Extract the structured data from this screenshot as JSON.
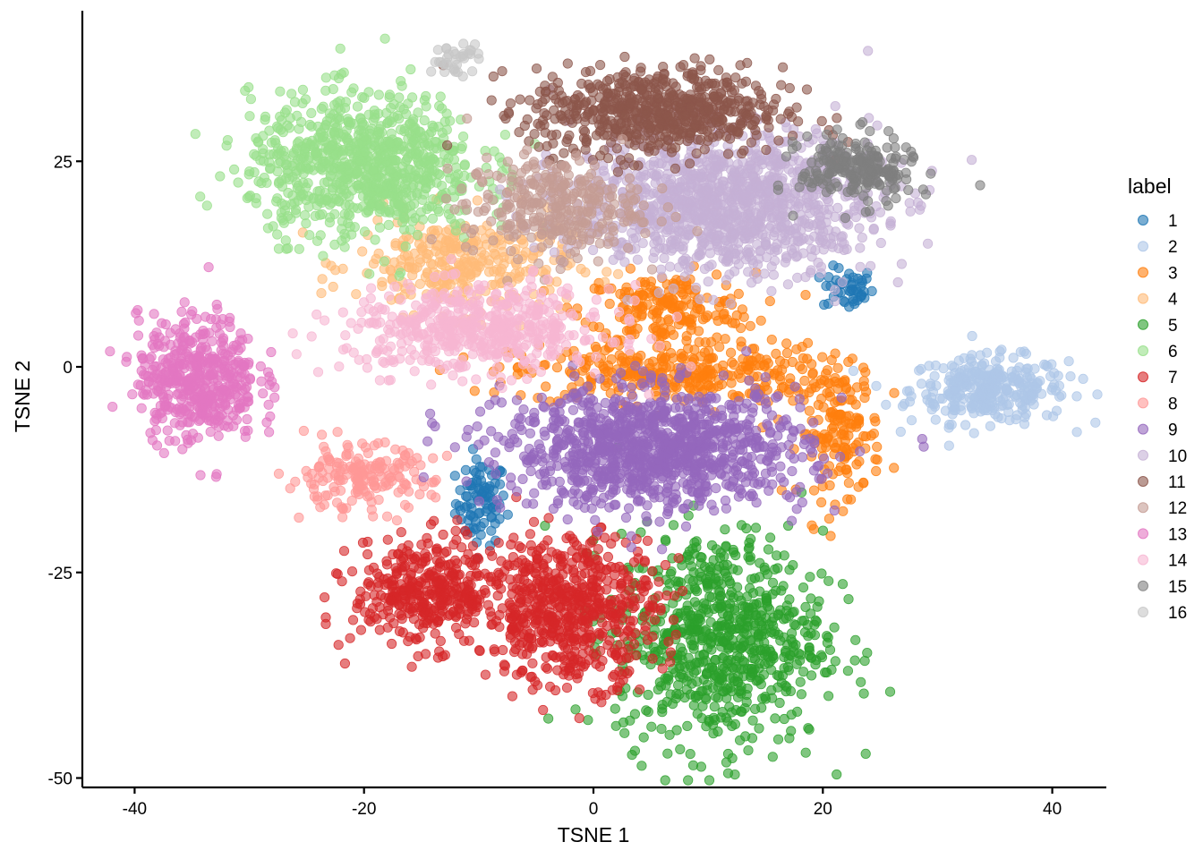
{
  "chart_data": {
    "type": "scatter",
    "xlabel": "TSNE 1",
    "ylabel": "TSNE 2",
    "xlim": [
      -45,
      45
    ],
    "ylim": [
      -51,
      43
    ],
    "x_ticks": [
      -40,
      -20,
      0,
      20,
      40
    ],
    "y_ticks": [
      -50,
      -25,
      0,
      25
    ],
    "grid": false,
    "legend": {
      "title": "label",
      "position": "right"
    },
    "point_opacity": 0.6,
    "series": [
      {
        "name": "1",
        "color": "#1F77B4",
        "clusters": [
          {
            "x": -9.8,
            "y": -16.5,
            "n": 90,
            "sx": 1.1,
            "sy": 2.6
          },
          {
            "x": 22.2,
            "y": 9.5,
            "n": 45,
            "sx": 1.1,
            "sy": 1.3
          }
        ]
      },
      {
        "name": "2",
        "color": "#AEC7E8",
        "clusters": [
          {
            "x": 34.5,
            "y": -2.8,
            "n": 320,
            "sx": 3.4,
            "sy": 2.0
          }
        ]
      },
      {
        "name": "3",
        "color": "#FF7F0E",
        "clusters": [
          {
            "x": 6.5,
            "y": 7.0,
            "n": 200,
            "sx": 3.8,
            "sy": 2.2
          },
          {
            "x": 7.0,
            "y": -0.8,
            "n": 320,
            "sx": 7.0,
            "sy": 1.8
          },
          {
            "x": 21.5,
            "y": -8.0,
            "n": 160,
            "sx": 1.8,
            "sy": 4.0
          }
        ]
      },
      {
        "name": "4",
        "color": "#FFBB78",
        "clusters": [
          {
            "x": -11.5,
            "y": 12.5,
            "n": 320,
            "sx": 4.6,
            "sy": 3.0
          }
        ]
      },
      {
        "name": "5",
        "color": "#2CA02C",
        "clusters": [
          {
            "x": 11.0,
            "y": -33.0,
            "n": 750,
            "sx": 4.5,
            "sy": 6.5
          }
        ]
      },
      {
        "name": "6",
        "color": "#98DF8A",
        "clusters": [
          {
            "x": -20.0,
            "y": 24.5,
            "n": 850,
            "sx": 5.0,
            "sy": 4.3
          }
        ]
      },
      {
        "name": "7",
        "color": "#D62728",
        "clusters": [
          {
            "x": -14.5,
            "y": -27.5,
            "n": 380,
            "sx": 3.2,
            "sy": 3.2
          },
          {
            "x": -2.0,
            "y": -29.5,
            "n": 620,
            "sx": 3.8,
            "sy": 4.5
          }
        ]
      },
      {
        "name": "8",
        "color": "#FF9896",
        "clusters": [
          {
            "x": -20.5,
            "y": -13.5,
            "n": 180,
            "sx": 3.2,
            "sy": 2.0
          }
        ]
      },
      {
        "name": "9",
        "color": "#9467BD",
        "clusters": [
          {
            "x": 5.5,
            "y": -10.0,
            "n": 1100,
            "sx": 6.5,
            "sy": 3.6
          }
        ]
      },
      {
        "name": "10",
        "color": "#C5B0D5",
        "clusters": [
          {
            "x": 11.5,
            "y": 20.0,
            "n": 1200,
            "sx": 6.5,
            "sy": 4.3
          }
        ]
      },
      {
        "name": "11",
        "color": "#8C564B",
        "clusters": [
          {
            "x": 5.5,
            "y": 31.0,
            "n": 650,
            "sx": 5.5,
            "sy": 2.7
          }
        ]
      },
      {
        "name": "12",
        "color": "#C49C94",
        "clusters": [
          {
            "x": -3.5,
            "y": 19.5,
            "n": 320,
            "sx": 3.8,
            "sy": 3.0
          }
        ]
      },
      {
        "name": "13",
        "color": "#E377C2",
        "clusters": [
          {
            "x": -34.5,
            "y": -1.5,
            "n": 480,
            "sx": 2.6,
            "sy": 3.8
          }
        ]
      },
      {
        "name": "14",
        "color": "#F7B6D2",
        "clusters": [
          {
            "x": -10.0,
            "y": 4.5,
            "n": 520,
            "sx": 5.8,
            "sy": 2.6
          }
        ]
      },
      {
        "name": "15",
        "color": "#7F7F7F",
        "clusters": [
          {
            "x": 23.0,
            "y": 24.0,
            "n": 220,
            "sx": 2.5,
            "sy": 2.1
          }
        ]
      },
      {
        "name": "16",
        "color": "#C7C7C7",
        "clusters": [
          {
            "x": -12.0,
            "y": 37.5,
            "n": 35,
            "sx": 1.1,
            "sy": 0.9
          }
        ]
      }
    ]
  }
}
